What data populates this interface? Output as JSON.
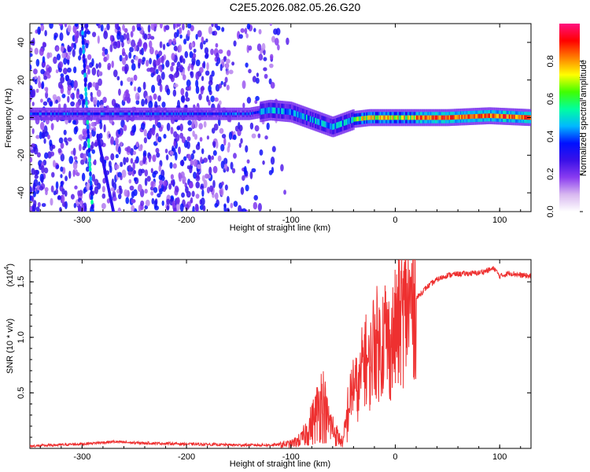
{
  "title": "C2E5.2026.082.05.26.G20",
  "chart_data": [
    {
      "type": "heatmap",
      "title": "C2E5.2026.082.05.26.G20",
      "xlabel": "Height of straight line (km)",
      "ylabel": "Frequency (Hz)",
      "xlim": [
        -350,
        130
      ],
      "ylim": [
        -50,
        50
      ],
      "xticks": [
        -300,
        -200,
        -100,
        0,
        100
      ],
      "xtick_labels": [
        "-300",
        "-200",
        "-100",
        "0",
        "100"
      ],
      "yticks": [
        -40,
        -20,
        0,
        20,
        40
      ],
      "ytick_labels": [
        "-40",
        "-20",
        "0",
        "20",
        "40"
      ],
      "colorbar": {
        "label": "Normalized spectral amplitude",
        "range": [
          0,
          1
        ],
        "ticks": [
          0,
          0.2,
          0.4,
          0.6,
          0.8
        ],
        "tick_labels": [
          "0.0",
          "0.2",
          "0.4",
          "0.6",
          "0.8"
        ],
        "colormap": [
          "#ffffff",
          "#d8b8f0",
          "#8a3cf0",
          "#3a10e8",
          "#0010ff",
          "#00b8ff",
          "#00ffa0",
          "#40ff00",
          "#ffff00",
          "#ff8000",
          "#ff0000",
          "#ff1080"
        ]
      },
      "ridge": [
        {
          "x": -350,
          "y": 2
        },
        {
          "x": -300,
          "y": 2
        },
        {
          "x": -250,
          "y": 2
        },
        {
          "x": -200,
          "y": 2
        },
        {
          "x": -170,
          "y": 2
        },
        {
          "x": -140,
          "y": 2
        },
        {
          "x": -120,
          "y": 4
        },
        {
          "x": -100,
          "y": 3
        },
        {
          "x": -90,
          "y": 1
        },
        {
          "x": -80,
          "y": -1
        },
        {
          "x": -70,
          "y": -3
        },
        {
          "x": -60,
          "y": -5
        },
        {
          "x": -50,
          "y": -3
        },
        {
          "x": -40,
          "y": -1
        },
        {
          "x": -25,
          "y": 0
        },
        {
          "x": 0,
          "y": 0
        },
        {
          "x": 50,
          "y": 0
        },
        {
          "x": 90,
          "y": 1
        },
        {
          "x": 130,
          "y": 0
        }
      ],
      "streaks": [
        {
          "x": [
            -300,
            -290
          ],
          "y": [
            50,
            -50
          ]
        },
        {
          "x": [
            -285,
            -270
          ],
          "y": [
            -10,
            -50
          ]
        }
      ]
    },
    {
      "type": "line",
      "xlabel": "Height of straight line (km)",
      "ylabel": "SNR (10 * v/v)",
      "yscale_label": "(x10",
      "yscale_exp": "4",
      "yscale_close": ")",
      "xlim": [
        -350,
        130
      ],
      "ylim": [
        0,
        1.7
      ],
      "xticks": [
        -300,
        -200,
        -100,
        0,
        100
      ],
      "xtick_labels": [
        "-300",
        "-200",
        "-100",
        "0",
        "100"
      ],
      "yticks": [
        0.5,
        1.0,
        1.5
      ],
      "ytick_labels": [
        "0.5",
        "1.0",
        "1.5"
      ],
      "series": [
        {
          "name": "SNR",
          "color": "#ee3030",
          "x": [
            -350,
            -300,
            -270,
            -250,
            -200,
            -150,
            -120,
            -100,
            -90,
            -80,
            -75,
            -70,
            -65,
            -60,
            -55,
            -50,
            -45,
            -40,
            -35,
            -30,
            -25,
            -20,
            -15,
            -10,
            -5,
            0,
            5,
            10,
            20,
            30,
            40,
            50,
            60,
            80,
            95,
            100,
            110,
            120,
            130
          ],
          "values": [
            0.02,
            0.04,
            0.06,
            0.05,
            0.04,
            0.03,
            0.03,
            0.04,
            0.08,
            0.22,
            0.32,
            0.45,
            0.25,
            0.18,
            0.1,
            0.05,
            0.35,
            0.6,
            0.5,
            0.85,
            0.7,
            1.0,
            0.9,
            1.05,
            0.9,
            1.05,
            1.15,
            1.25,
            1.35,
            1.45,
            1.52,
            1.56,
            1.57,
            1.58,
            1.62,
            1.55,
            1.58,
            1.56,
            1.55
          ]
        }
      ]
    }
  ]
}
